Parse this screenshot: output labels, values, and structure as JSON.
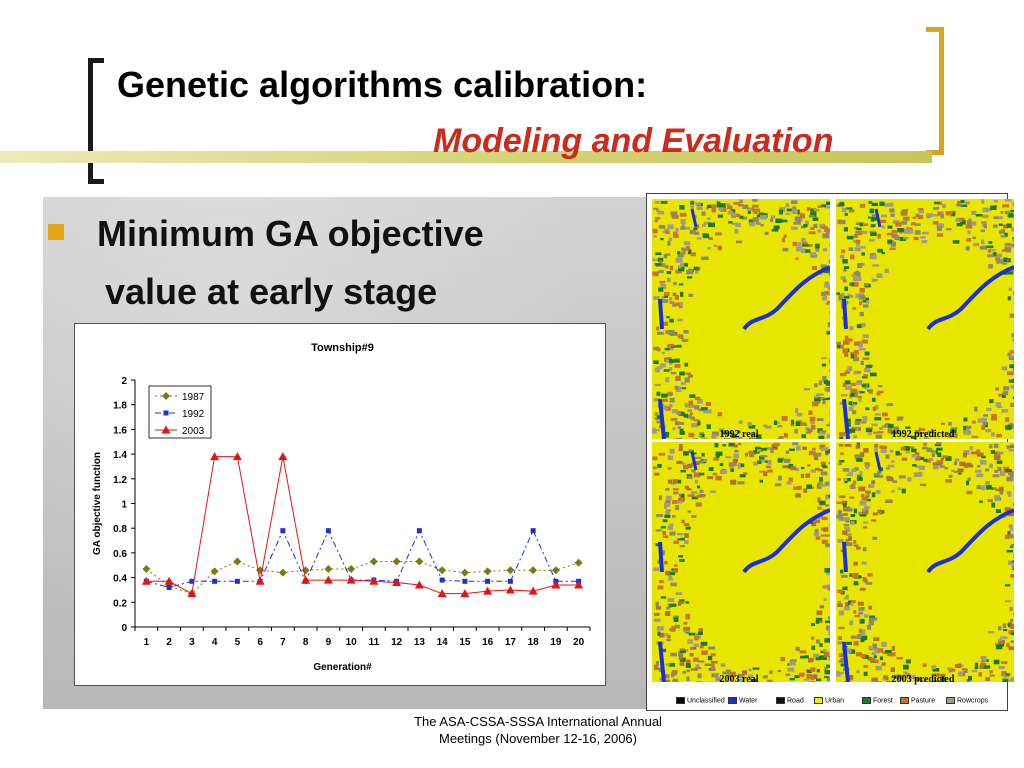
{
  "slide": {
    "title": "Genetic algorithms calibration:",
    "subtitle": "Modeling and Evaluation",
    "bullet_line1": "Minimum GA objective",
    "bullet_line2": "value at early stage",
    "footer_line1": "The ASA-CSSA-SSSA International Annual",
    "footer_line2": "Meetings (November 12-16, 2006)",
    "accent_color": "#cc2a1a",
    "bracket_color": "#d9a520"
  },
  "maps": {
    "labels": [
      "1992 real",
      "1992 predicted",
      "2003 real",
      "2003 predicted"
    ],
    "legend": [
      {
        "label": "Unclassified",
        "color": "#000000"
      },
      {
        "label": "Water",
        "color": "#1a2fd6"
      },
      {
        "label": "Road",
        "color": "#111111"
      },
      {
        "label": "Urban",
        "color": "#f3ee00"
      },
      {
        "label": "Forest",
        "color": "#1f7a1f"
      },
      {
        "label": "Pasture",
        "color": "#c8752a"
      },
      {
        "label": "Rowcrops",
        "color": "#a09a88"
      }
    ]
  },
  "chart_data": {
    "type": "line",
    "title": "Township#9",
    "xlabel": "Generation#",
    "ylabel": "GA objective function",
    "categories": [
      "1",
      "2",
      "3",
      "4",
      "5",
      "6",
      "7",
      "8",
      "9",
      "10",
      "11",
      "12",
      "13",
      "14",
      "15",
      "16",
      "17",
      "18",
      "19",
      "20"
    ],
    "ylim": [
      0,
      2
    ],
    "yticks": [
      "0",
      "0.2",
      "0.4",
      "0.6",
      "0.8",
      "1",
      "1.2",
      "1.4",
      "1.6",
      "1.8",
      "2"
    ],
    "legend_position": "top-left",
    "series": [
      {
        "name": "1987",
        "color": "#7a7a10",
        "marker": "diamond",
        "dash": "2,3",
        "values": [
          0.47,
          0.33,
          0.27,
          0.45,
          0.53,
          0.46,
          0.44,
          0.46,
          0.47,
          0.47,
          0.53,
          0.53,
          0.53,
          0.46,
          0.44,
          0.45,
          0.46,
          0.46,
          0.46,
          0.52
        ]
      },
      {
        "name": "1992",
        "color": "#1f2fd6",
        "marker": "square",
        "dash": "6,3,2,3",
        "values": [
          0.37,
          0.32,
          0.37,
          0.37,
          0.37,
          0.37,
          0.78,
          0.37,
          0.78,
          0.38,
          0.38,
          0.37,
          0.78,
          0.38,
          0.37,
          0.37,
          0.37,
          0.78,
          0.37,
          0.37
        ]
      },
      {
        "name": "2003",
        "color": "#e01515",
        "marker": "triangle",
        "dash": "",
        "values": [
          0.37,
          0.37,
          0.27,
          1.38,
          1.38,
          0.37,
          1.38,
          0.38,
          0.38,
          0.38,
          0.37,
          0.36,
          0.34,
          0.27,
          0.27,
          0.29,
          0.3,
          0.29,
          0.34,
          0.34
        ]
      }
    ]
  }
}
